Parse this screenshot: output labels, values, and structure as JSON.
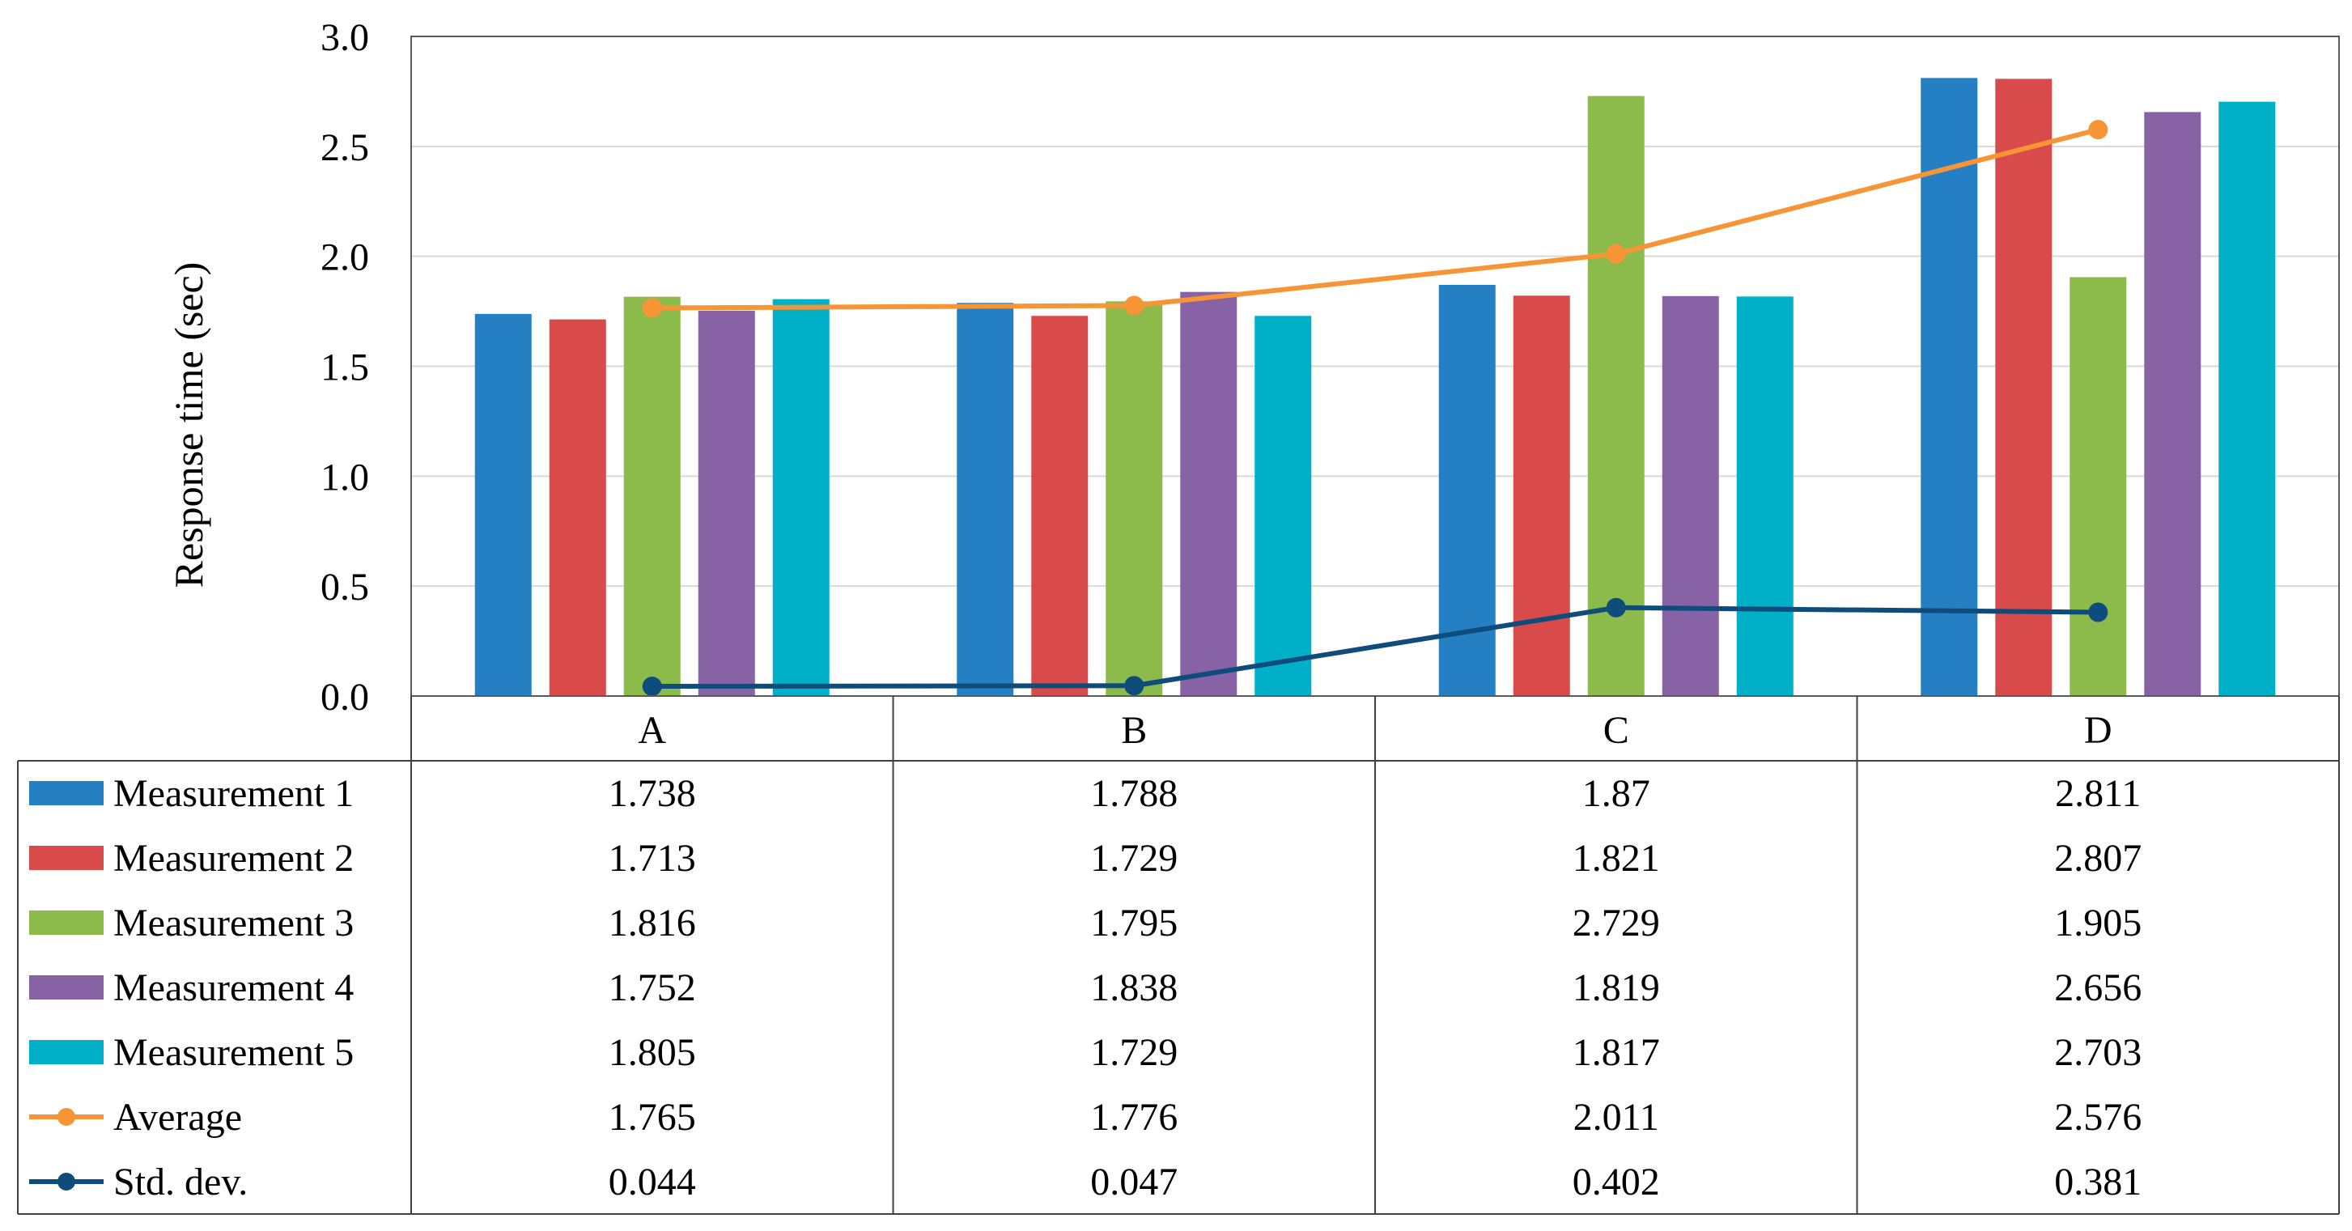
{
  "chart_data": {
    "type": "bar",
    "title": "",
    "xlabel": "",
    "ylabel": "Response time (sec)",
    "ylim": [
      0,
      3.0
    ],
    "yticks": [
      "0.0",
      "0.5",
      "1.0",
      "1.5",
      "2.0",
      "2.5",
      "3.0"
    ],
    "grid": true,
    "legend": "data-table",
    "categories": [
      "A",
      "B",
      "C",
      "D"
    ],
    "series": [
      {
        "name": "Measurement 1",
        "kind": "bar",
        "color": "#2580C3",
        "values": [
          1.738,
          1.788,
          1.87,
          2.811
        ],
        "labels": [
          "1.738",
          "1.788",
          "1.87",
          "2.811"
        ]
      },
      {
        "name": "Measurement 2",
        "kind": "bar",
        "color": "#D94A4A",
        "values": [
          1.713,
          1.729,
          1.821,
          2.807
        ],
        "labels": [
          "1.713",
          "1.729",
          "1.821",
          "2.807"
        ]
      },
      {
        "name": "Measurement 3",
        "kind": "bar",
        "color": "#8CBB4B",
        "values": [
          1.816,
          1.795,
          2.729,
          1.905
        ],
        "labels": [
          "1.816",
          "1.795",
          "2.729",
          "1.905"
        ]
      },
      {
        "name": "Measurement 4",
        "kind": "bar",
        "color": "#8763A6",
        "values": [
          1.752,
          1.838,
          1.819,
          2.656
        ],
        "labels": [
          "1.752",
          "1.838",
          "1.819",
          "2.656"
        ]
      },
      {
        "name": "Measurement 5",
        "kind": "bar",
        "color": "#00AFC8",
        "values": [
          1.805,
          1.729,
          1.817,
          2.703
        ],
        "labels": [
          "1.805",
          "1.729",
          "1.817",
          "2.703"
        ]
      },
      {
        "name": "Average",
        "kind": "line",
        "color": "#F79436",
        "values": [
          1.765,
          1.776,
          2.011,
          2.576
        ],
        "labels": [
          "1.765",
          "1.776",
          "2.011",
          "2.576"
        ]
      },
      {
        "name": "Std. dev.",
        "kind": "line",
        "color": "#0E4C7C",
        "values": [
          0.044,
          0.047,
          0.402,
          0.381
        ],
        "labels": [
          "0.044",
          "0.047",
          "0.402",
          "0.381"
        ]
      }
    ]
  }
}
